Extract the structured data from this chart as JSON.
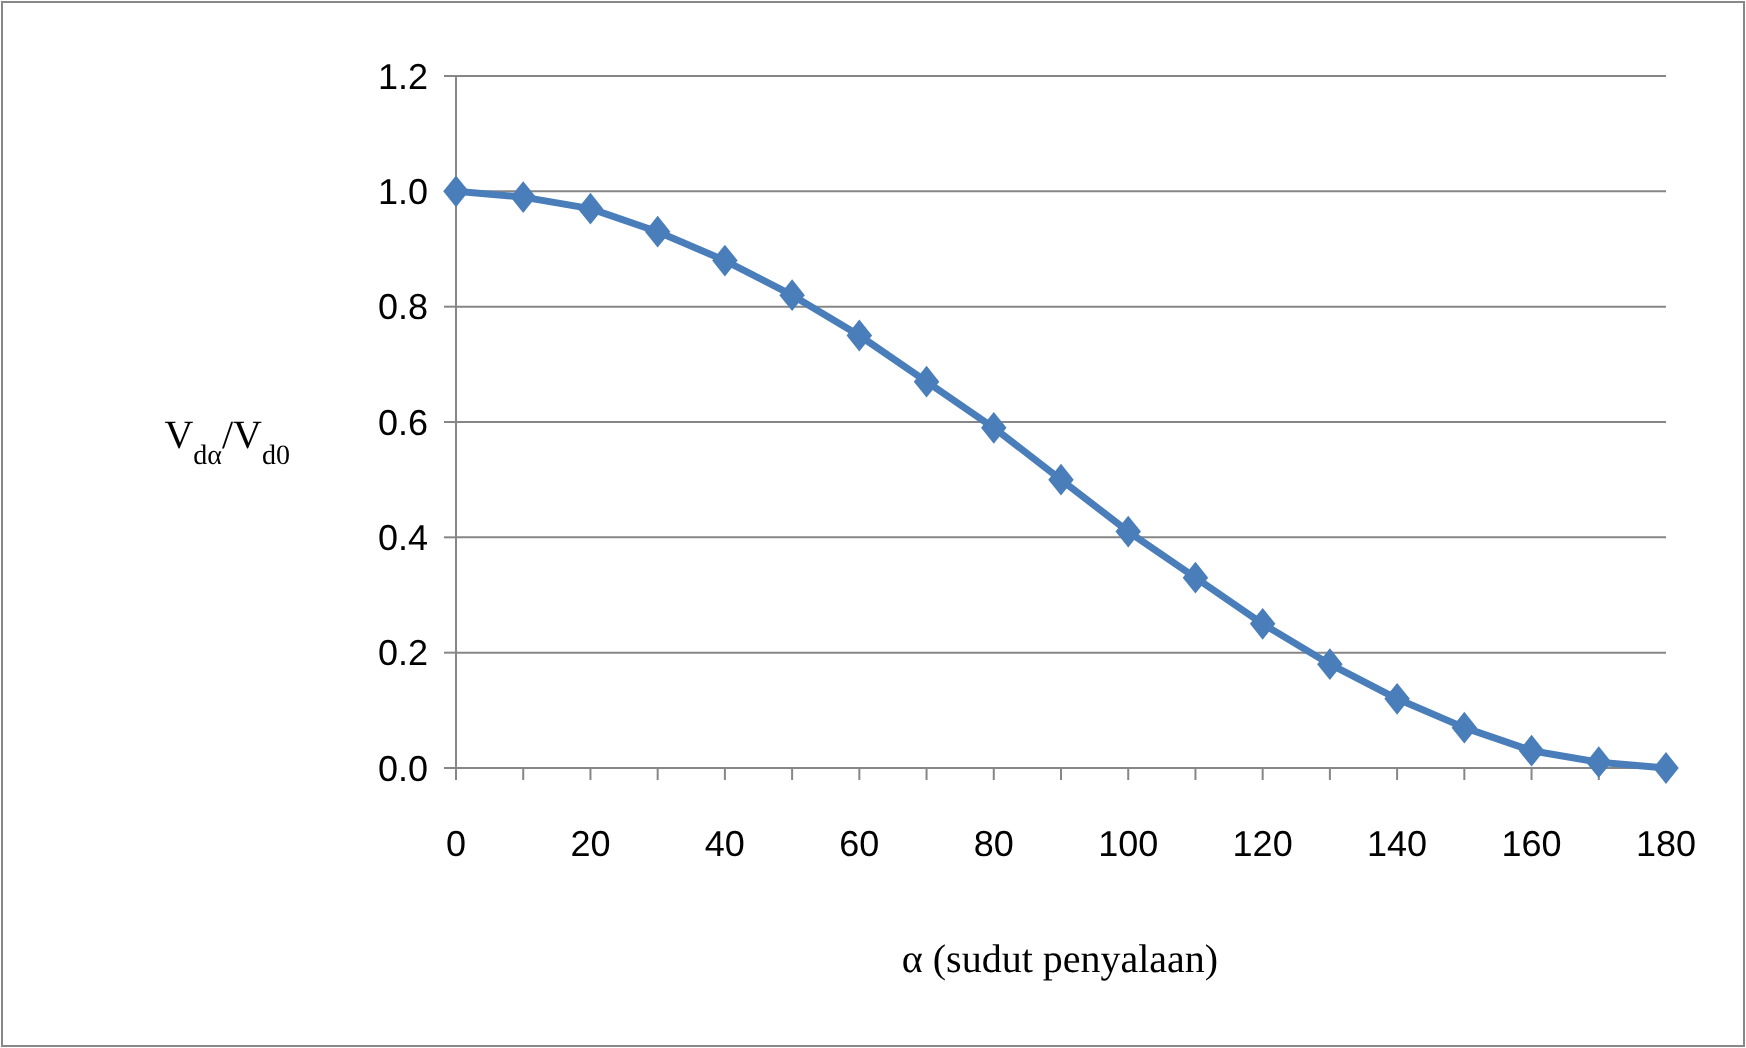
{
  "chart_data": {
    "type": "line",
    "xlabel": "α (sudut penyalaan)",
    "ylabel": "V$_{dα}$/V$_{d0}$",
    "x": [
      0,
      10,
      20,
      30,
      40,
      50,
      60,
      70,
      80,
      90,
      100,
      110,
      120,
      130,
      140,
      150,
      160,
      170,
      180
    ],
    "series": [
      {
        "color": "#4a7ebb",
        "values": [
          1.0,
          0.99,
          0.97,
          0.93,
          0.88,
          0.82,
          0.75,
          0.67,
          0.59,
          0.5,
          0.41,
          0.33,
          0.25,
          0.18,
          0.12,
          0.07,
          0.03,
          0.01,
          0.0
        ]
      }
    ],
    "xlim": [
      0,
      180
    ],
    "xticks": [
      0,
      {
        "value": 10,
        "label": null
      },
      20,
      {
        "value": 30,
        "label": null
      },
      40,
      {
        "value": 50,
        "label": null
      },
      60,
      {
        "value": 70,
        "label": null
      },
      80,
      {
        "value": 90,
        "label": null
      },
      100,
      {
        "value": 110,
        "label": null
      },
      120,
      {
        "value": 130,
        "label": null
      },
      140,
      {
        "value": 150,
        "label": null
      },
      160,
      {
        "value": 170,
        "label": null
      },
      180
    ],
    "ylim": [
      0,
      1.2
    ],
    "yticks": [
      {
        "value": 0,
        "label": "0.0"
      },
      {
        "value": 0.2,
        "label": "0.2"
      },
      {
        "value": 0.4,
        "label": "0.4"
      },
      {
        "value": 0.6,
        "label": "0.6"
      },
      {
        "value": 0.8,
        "label": "0.8"
      },
      {
        "value": 1.0,
        "label": "1.0"
      },
      {
        "value": 1.2,
        "label": "1.2"
      }
    ],
    "grid": "y",
    "marker": "diamond",
    "line_style": "solid"
  }
}
